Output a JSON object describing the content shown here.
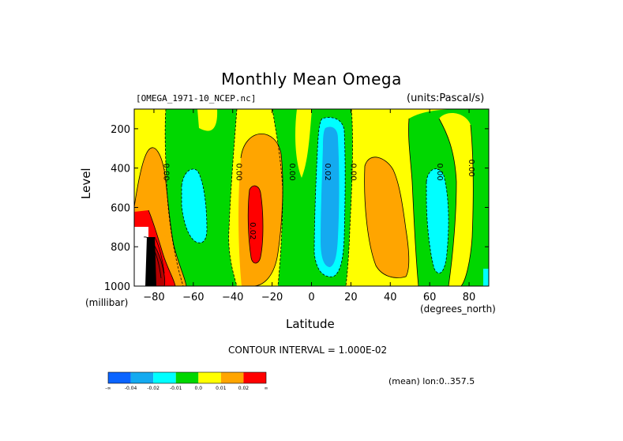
{
  "header": {
    "title": "Monthly Mean Omega",
    "subtitle": "[OMEGA_1971-10_NCEP.nc]",
    "units": "(units:Pascal/s)"
  },
  "footer": {
    "contour_interval": "CONTOUR INTERVAL = 1.000E-02",
    "mean_note": "(mean) lon:0..357.5"
  },
  "chart_data": {
    "type": "heatmap",
    "title": "Monthly Mean Omega",
    "xlabel": "Latitude",
    "ylabel": "Level",
    "x_units": "(degrees_north)",
    "y_units": "(millibar)",
    "xlim": [
      -90,
      90
    ],
    "ylim": [
      1000,
      100
    ],
    "y_reversed": true,
    "x_ticks": [
      -80,
      -60,
      -40,
      -20,
      0,
      20,
      40,
      60,
      80
    ],
    "y_ticks": [
      200,
      400,
      600,
      800,
      1000
    ],
    "contour_labels": [
      {
        "text": "0.00",
        "x": -75,
        "y": 420
      },
      {
        "text": "0.00",
        "x": -38,
        "y": 420
      },
      {
        "text": "0.00",
        "x": -11,
        "y": 420
      },
      {
        "text": "0.02",
        "x": 7,
        "y": 420
      },
      {
        "text": "0.00",
        "x": 20,
        "y": 420
      },
      {
        "text": "0.02",
        "x": -31,
        "y": 720
      },
      {
        "text": "0.00",
        "x": 64,
        "y": 420
      },
      {
        "text": "0.00",
        "x": 80,
        "y": 400
      }
    ],
    "legend": {
      "placement": "bottom-left",
      "bins": [
        {
          "color": "#0a64ff",
          "label": "-∞"
        },
        {
          "color": "#14aaf0",
          "label": "-0.04"
        },
        {
          "color": "#00ffff",
          "label": "-0.02"
        },
        {
          "color": "#00d700",
          "label": "-0.01"
        },
        {
          "color": "#ffff00",
          "label": "0.0"
        },
        {
          "color": "#ffa500",
          "label": "0.01"
        },
        {
          "color": "#ff0000",
          "label": "0.02"
        },
        {
          "color": "#ff0000",
          "label": "∞"
        }
      ]
    }
  },
  "colors": {
    "blue": "#0a64ff",
    "lightblue": "#14aaf0",
    "cyan": "#00ffff",
    "green": "#00d700",
    "yellow": "#ffff00",
    "orange": "#ffa500",
    "red": "#ff0000",
    "darkred": "#b40000",
    "black": "#000000"
  }
}
